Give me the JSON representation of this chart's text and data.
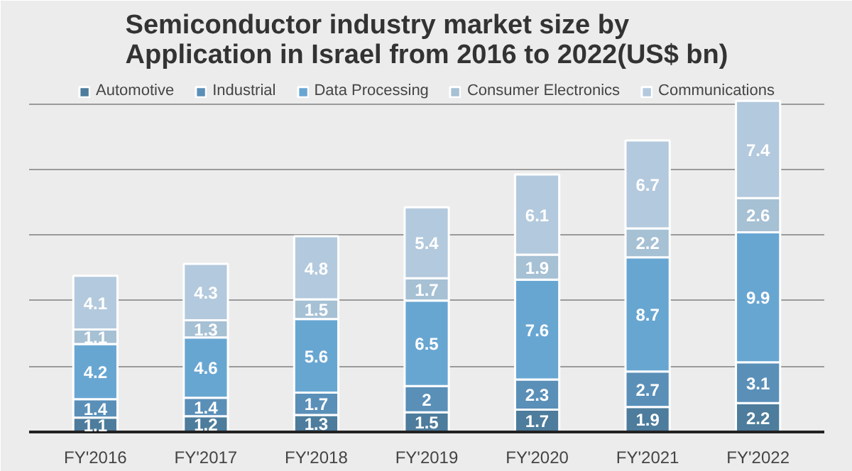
{
  "chart_data": {
    "type": "bar",
    "title": "Semiconductor industry market size by\nApplication in Israel from 2016 to 2022(US$ bn)",
    "categories": [
      "FY'2016",
      "FY'2017",
      "FY'2018",
      "FY'2019",
      "FY'2020",
      "FY'2021",
      "FY'2022"
    ],
    "stacked": true,
    "data_labels": true,
    "legend": "top",
    "grid": "y",
    "ylim": [
      0,
      27
    ],
    "yticks": [
      {
        "value": 0,
        "label": null
      },
      {
        "value": 5,
        "label": null
      },
      {
        "value": 10,
        "label": null
      },
      {
        "value": 15,
        "label": null
      },
      {
        "value": 20,
        "label": null
      },
      {
        "value": 25,
        "label": null
      }
    ],
    "tick_labels": "x",
    "series": [
      {
        "name": "Automotive",
        "color": "#4d7c9c",
        "values": [
          1.1,
          1.2,
          1.3,
          1.5,
          1.7,
          1.9,
          2.2
        ]
      },
      {
        "name": "Industrial",
        "color": "#5a8fb8",
        "values": [
          1.4,
          1.4,
          1.7,
          2,
          2.3,
          2.7,
          3.1
        ]
      },
      {
        "name": "Data Processing",
        "color": "#68a6d2",
        "values": [
          4.2,
          4.6,
          5.6,
          6.5,
          7.6,
          8.7,
          9.9
        ]
      },
      {
        "name": "Consumer Electronics",
        "color": "#a6c0d4",
        "values": [
          1.1,
          1.3,
          1.5,
          1.7,
          1.9,
          2.2,
          2.6
        ]
      },
      {
        "name": "Communications",
        "color": "#b3c9dd",
        "values": [
          4.1,
          4.3,
          4.8,
          5.4,
          6.1,
          6.7,
          7.4
        ]
      }
    ]
  }
}
